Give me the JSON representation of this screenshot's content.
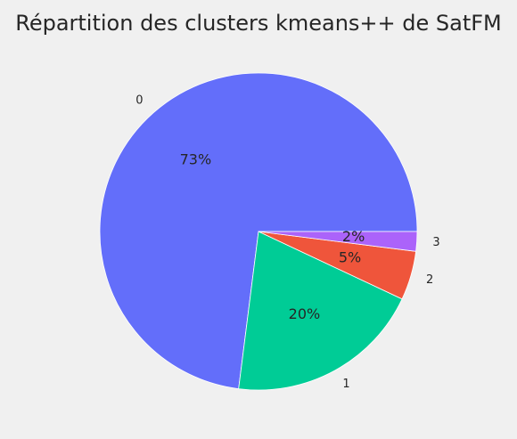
{
  "chart_data": {
    "type": "pie",
    "title": "Répartition des clusters kmeans++ de SatFM",
    "categories": [
      "0",
      "1",
      "2",
      "3"
    ],
    "values": [
      73,
      20,
      5,
      2
    ],
    "value_labels": [
      "73%",
      "20%",
      "5%",
      "2%"
    ],
    "colors": [
      "#636efa",
      "#00cc96",
      "#ef553b",
      "#ab63fa"
    ],
    "start_angle_deg": 0,
    "direction": "counterclockwise",
    "legend": "none"
  }
}
